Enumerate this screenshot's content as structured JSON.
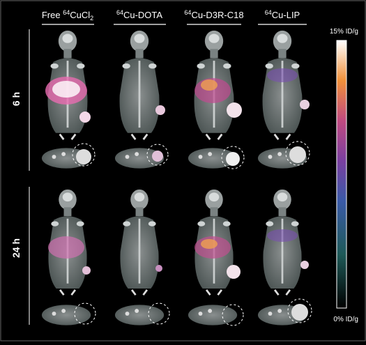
{
  "columns": [
    {
      "prefix": "Free ",
      "sup": "64",
      "main": "CuCl",
      "sub": "2"
    },
    {
      "sup": "64",
      "main": "Cu-DOTA"
    },
    {
      "sup": "64",
      "main": "Cu-D3R-C18"
    },
    {
      "sup": "64",
      "main": "Cu-LIP"
    }
  ],
  "rows": [
    "6 h",
    "24 h"
  ],
  "colorbar": {
    "max_label": "15% ID/g",
    "min_label": "0% ID/g"
  }
}
